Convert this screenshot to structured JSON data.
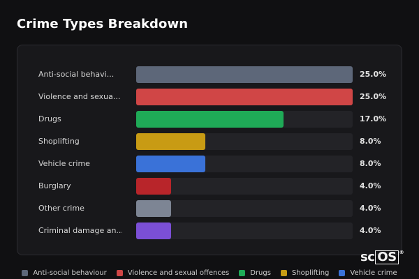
{
  "title": "Crime Types Breakdown",
  "watermark": {
    "prefix": "sc",
    "boxed": "OS",
    "mark": "®"
  },
  "chart_data": {
    "type": "bar",
    "orientation": "horizontal",
    "value_suffix": "%",
    "xlim": [
      0,
      25
    ],
    "categories": [
      "Anti-social behavi...",
      "Violence and sexua...",
      "Drugs",
      "Shoplifting",
      "Vehicle crime",
      "Burglary",
      "Other crime",
      "Criminal damage an..."
    ],
    "values": [
      25.0,
      25.0,
      17.0,
      8.0,
      8.0,
      4.0,
      4.0,
      4.0
    ],
    "value_labels": [
      "25.0%",
      "25.0%",
      "17.0%",
      "8.0%",
      "8.0%",
      "4.0%",
      "4.0%",
      "4.0%"
    ],
    "colors": [
      "#5d6779",
      "#d04646",
      "#1faa57",
      "#c89b14",
      "#3a72d8",
      "#b8252a",
      "#7d8594",
      "#7b4fd6"
    ],
    "legend": [
      {
        "label": "Anti-social behaviour",
        "color": "#5d6779"
      },
      {
        "label": "Violence and sexual offences",
        "color": "#d04646"
      },
      {
        "label": "Drugs",
        "color": "#1faa57"
      },
      {
        "label": "Shoplifting",
        "color": "#c89b14"
      },
      {
        "label": "Vehicle crime",
        "color": "#3a72d8"
      }
    ],
    "legend_position": "bottom"
  }
}
